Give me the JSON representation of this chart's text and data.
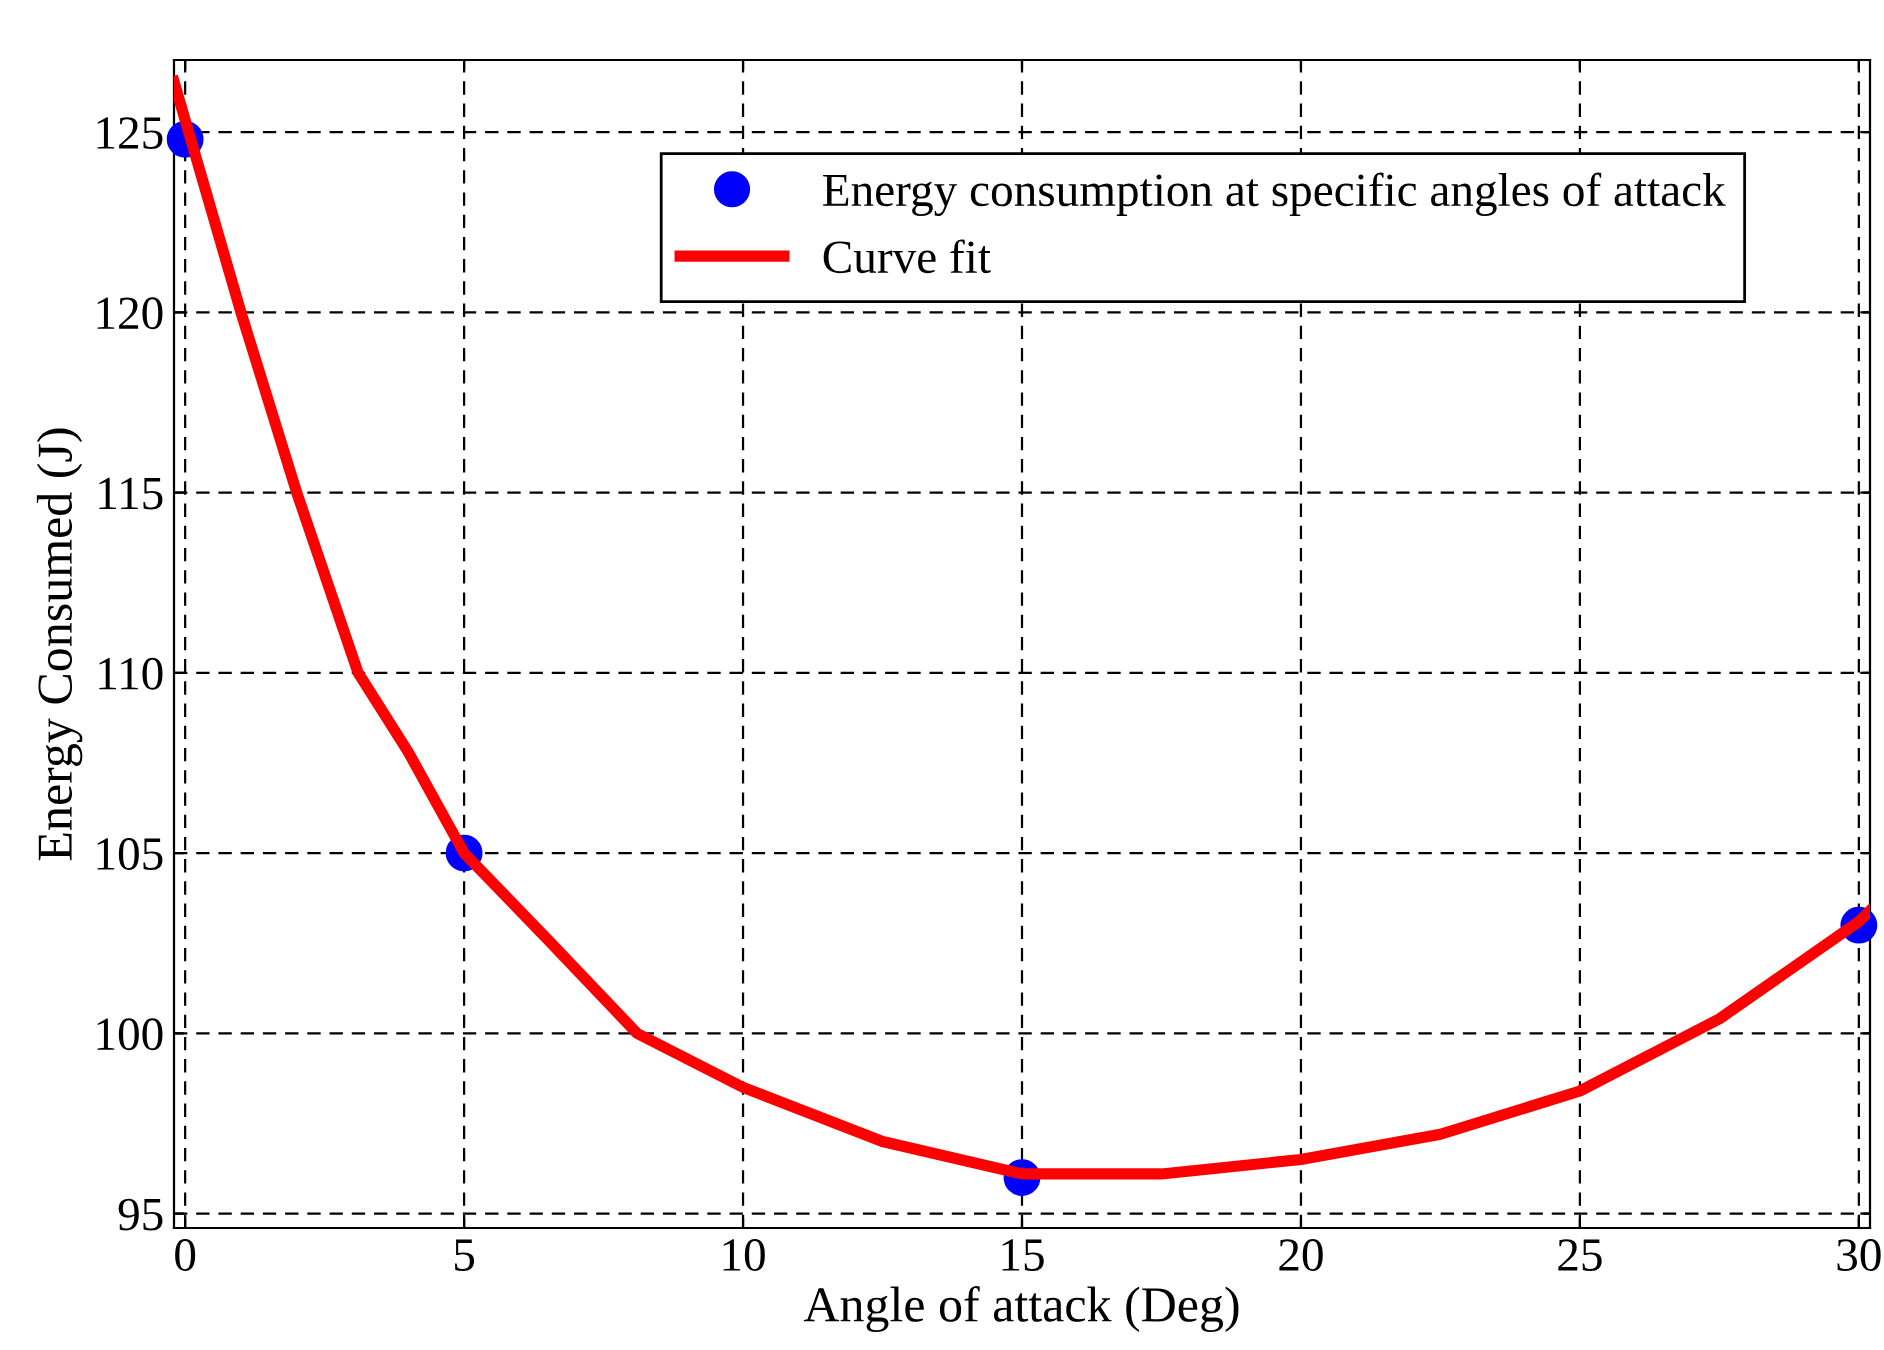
{
  "chart_data": {
    "type": "scatter",
    "xlabel": "Angle of attack (Deg)",
    "ylabel": "Energy Consumed (J)",
    "xlim": [
      -0.2,
      30.2
    ],
    "ylim": [
      94.6,
      127
    ],
    "xticks": [
      0,
      5,
      10,
      15,
      20,
      25,
      30
    ],
    "yticks": [
      95,
      100,
      105,
      110,
      115,
      120,
      125
    ],
    "grid": true,
    "legend": "top right",
    "series": [
      {
        "name": "Energy consumption at specific angles of attack",
        "marker": "circle",
        "color": "#0000ff",
        "x": [
          0,
          5,
          15,
          30
        ],
        "values": [
          124.8,
          105,
          96,
          103
        ]
      },
      {
        "name": "Curve fit",
        "type": "line",
        "marker": "none",
        "line_style": "solid",
        "color": "#ff0000",
        "x": [
          -0.2,
          1,
          2,
          3.1,
          4,
          5,
          6.5,
          8.1,
          10,
          12.5,
          15,
          17.5,
          20,
          22.5,
          25,
          27.5,
          30,
          30.2
        ],
        "values": [
          126.4,
          120,
          115,
          110,
          107.8,
          105,
          102.6,
          100,
          98.5,
          97,
          96.1,
          96.1,
          96.5,
          97.2,
          98.4,
          100.4,
          103.1,
          103.4
        ]
      }
    ]
  }
}
